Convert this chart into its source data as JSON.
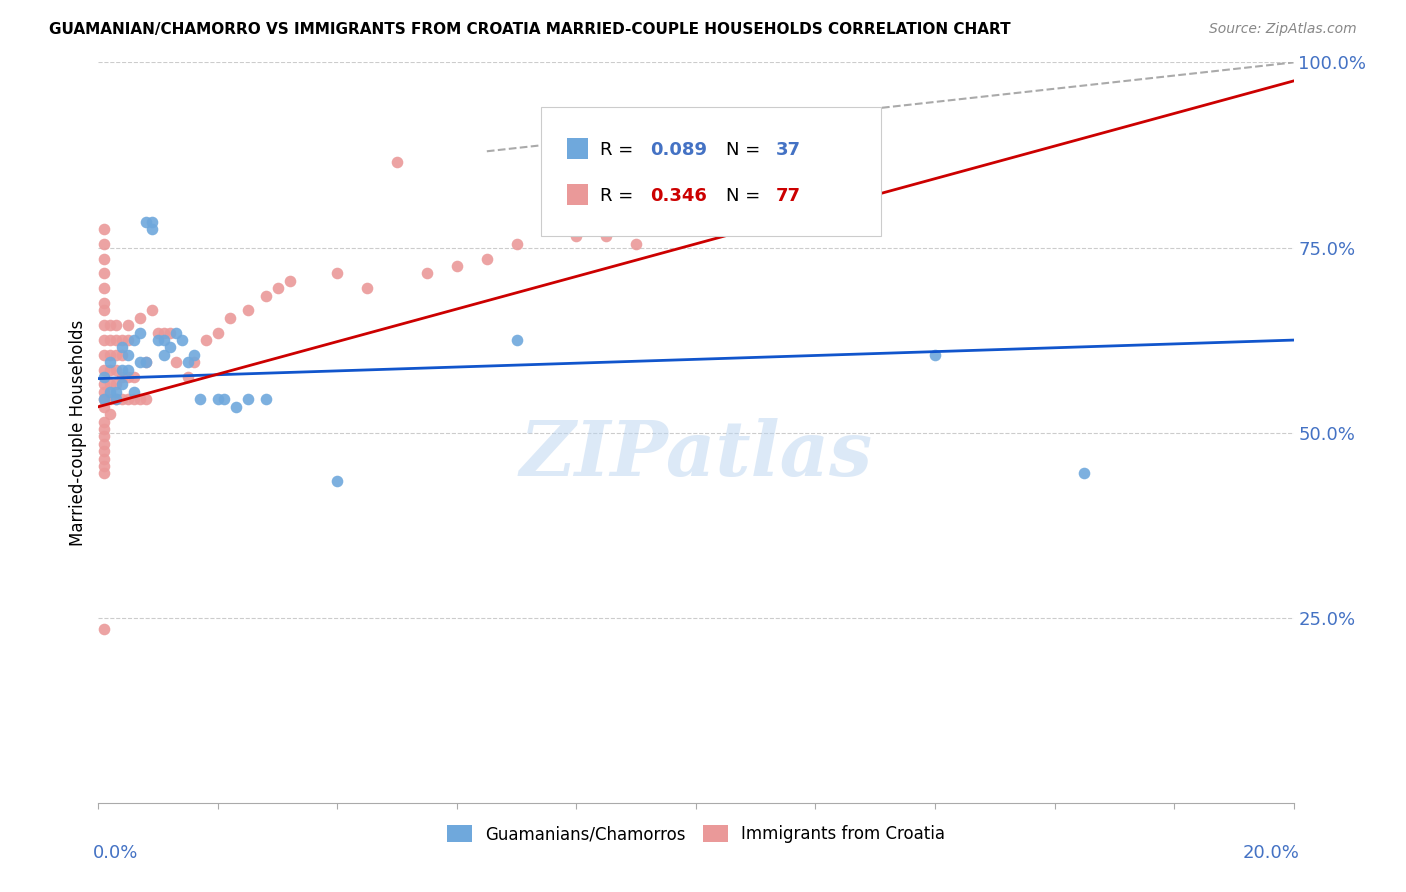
{
  "title": "GUAMANIAN/CHAMORRO VS IMMIGRANTS FROM CROATIA MARRIED-COUPLE HOUSEHOLDS CORRELATION CHART",
  "source": "Source: ZipAtlas.com",
  "ylabel": "Married-couple Households",
  "legend_blue_R": "0.089",
  "legend_blue_N": "37",
  "legend_pink_R": "0.346",
  "legend_pink_N": "77",
  "blue_color": "#6fa8dc",
  "pink_color": "#ea9999",
  "blue_line_color": "#1155cc",
  "pink_line_color": "#cc0000",
  "diagonal_color": "#aaaaaa",
  "axis_label_color": "#4472c4",
  "watermark": "ZIPatlas",
  "blue_scatter": [
    [
      0.001,
      0.575
    ],
    [
      0.001,
      0.545
    ],
    [
      0.002,
      0.595
    ],
    [
      0.002,
      0.555
    ],
    [
      0.003,
      0.555
    ],
    [
      0.003,
      0.545
    ],
    [
      0.004,
      0.585
    ],
    [
      0.004,
      0.565
    ],
    [
      0.004,
      0.615
    ],
    [
      0.005,
      0.585
    ],
    [
      0.005,
      0.605
    ],
    [
      0.006,
      0.625
    ],
    [
      0.006,
      0.555
    ],
    [
      0.007,
      0.635
    ],
    [
      0.007,
      0.595
    ],
    [
      0.008,
      0.595
    ],
    [
      0.008,
      0.785
    ],
    [
      0.009,
      0.785
    ],
    [
      0.009,
      0.775
    ],
    [
      0.01,
      0.625
    ],
    [
      0.011,
      0.625
    ],
    [
      0.011,
      0.605
    ],
    [
      0.012,
      0.615
    ],
    [
      0.013,
      0.635
    ],
    [
      0.014,
      0.625
    ],
    [
      0.015,
      0.595
    ],
    [
      0.016,
      0.605
    ],
    [
      0.017,
      0.545
    ],
    [
      0.02,
      0.545
    ],
    [
      0.021,
      0.545
    ],
    [
      0.023,
      0.535
    ],
    [
      0.025,
      0.545
    ],
    [
      0.028,
      0.545
    ],
    [
      0.04,
      0.435
    ],
    [
      0.07,
      0.625
    ],
    [
      0.14,
      0.605
    ],
    [
      0.165,
      0.445
    ]
  ],
  "pink_scatter": [
    [
      0.001,
      0.775
    ],
    [
      0.001,
      0.755
    ],
    [
      0.001,
      0.735
    ],
    [
      0.001,
      0.715
    ],
    [
      0.001,
      0.695
    ],
    [
      0.001,
      0.675
    ],
    [
      0.001,
      0.665
    ],
    [
      0.001,
      0.645
    ],
    [
      0.001,
      0.625
    ],
    [
      0.001,
      0.605
    ],
    [
      0.001,
      0.585
    ],
    [
      0.001,
      0.565
    ],
    [
      0.001,
      0.555
    ],
    [
      0.001,
      0.545
    ],
    [
      0.001,
      0.535
    ],
    [
      0.001,
      0.515
    ],
    [
      0.001,
      0.505
    ],
    [
      0.001,
      0.495
    ],
    [
      0.001,
      0.485
    ],
    [
      0.001,
      0.475
    ],
    [
      0.001,
      0.465
    ],
    [
      0.001,
      0.455
    ],
    [
      0.001,
      0.445
    ],
    [
      0.002,
      0.645
    ],
    [
      0.002,
      0.625
    ],
    [
      0.002,
      0.605
    ],
    [
      0.002,
      0.585
    ],
    [
      0.002,
      0.565
    ],
    [
      0.002,
      0.545
    ],
    [
      0.002,
      0.525
    ],
    [
      0.003,
      0.645
    ],
    [
      0.003,
      0.625
    ],
    [
      0.003,
      0.605
    ],
    [
      0.003,
      0.585
    ],
    [
      0.003,
      0.565
    ],
    [
      0.003,
      0.545
    ],
    [
      0.004,
      0.625
    ],
    [
      0.004,
      0.605
    ],
    [
      0.004,
      0.575
    ],
    [
      0.004,
      0.545
    ],
    [
      0.005,
      0.645
    ],
    [
      0.005,
      0.625
    ],
    [
      0.005,
      0.575
    ],
    [
      0.005,
      0.545
    ],
    [
      0.006,
      0.575
    ],
    [
      0.006,
      0.545
    ],
    [
      0.007,
      0.655
    ],
    [
      0.007,
      0.545
    ],
    [
      0.008,
      0.595
    ],
    [
      0.008,
      0.545
    ],
    [
      0.009,
      0.665
    ],
    [
      0.01,
      0.635
    ],
    [
      0.011,
      0.635
    ],
    [
      0.012,
      0.635
    ],
    [
      0.013,
      0.595
    ],
    [
      0.015,
      0.575
    ],
    [
      0.016,
      0.595
    ],
    [
      0.018,
      0.625
    ],
    [
      0.02,
      0.635
    ],
    [
      0.022,
      0.655
    ],
    [
      0.025,
      0.665
    ],
    [
      0.028,
      0.685
    ],
    [
      0.03,
      0.695
    ],
    [
      0.032,
      0.705
    ],
    [
      0.04,
      0.715
    ],
    [
      0.045,
      0.695
    ],
    [
      0.05,
      0.865
    ],
    [
      0.055,
      0.715
    ],
    [
      0.06,
      0.725
    ],
    [
      0.065,
      0.735
    ],
    [
      0.07,
      0.755
    ],
    [
      0.08,
      0.765
    ],
    [
      0.085,
      0.765
    ],
    [
      0.09,
      0.755
    ],
    [
      0.001,
      0.235
    ],
    [
      0.1,
      0.775
    ],
    [
      0.11,
      0.785
    ]
  ],
  "blue_trendline": [
    [
      0.0,
      0.573
    ],
    [
      0.2,
      0.625
    ]
  ],
  "pink_trendline": [
    [
      0.0,
      0.535
    ],
    [
      0.2,
      0.975
    ]
  ],
  "diag_line": [
    [
      0.065,
      0.88
    ],
    [
      0.2,
      1.0
    ]
  ],
  "xlim": [
    0,
    0.2
  ],
  "ylim": [
    0,
    1.0
  ],
  "yticks": [
    0.25,
    0.5,
    0.75,
    1.0
  ],
  "ytick_labels": [
    "25.0%",
    "50.0%",
    "75.0%",
    "100.0%"
  ],
  "xticks": [
    0.0,
    0.02,
    0.04,
    0.06,
    0.08,
    0.1,
    0.12,
    0.14,
    0.16,
    0.18,
    0.2
  ],
  "figsize": [
    14.06,
    8.92
  ],
  "dpi": 100
}
